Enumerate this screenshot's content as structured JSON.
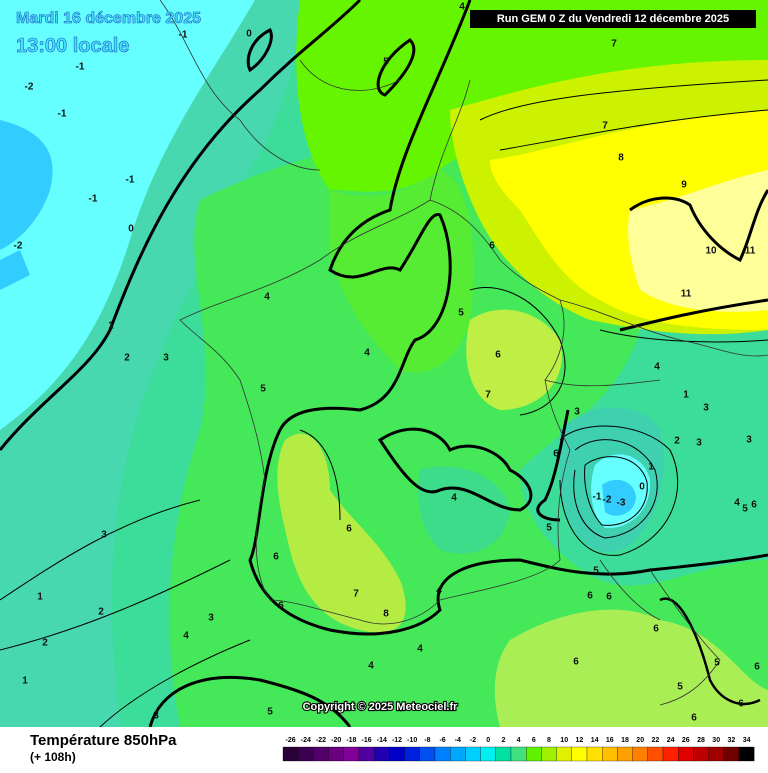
{
  "header": {
    "date": "Mardi 16 décembre 2025",
    "time": "13:00 locale",
    "run": "Run GEM 0 Z du Vendredi 12 décembre 2025"
  },
  "copyright": "Copyright © 2025 Meteociel.fr",
  "legend": {
    "title": "Température 850hPa",
    "lead": "(+ 108h)",
    "ticks": [
      -26,
      -24,
      -22,
      -20,
      -18,
      -16,
      -14,
      -12,
      -10,
      -8,
      -6,
      -4,
      -2,
      0,
      2,
      4,
      6,
      8,
      10,
      12,
      14,
      16,
      18,
      20,
      22,
      24,
      26,
      28,
      30,
      32,
      34
    ],
    "colors": [
      "#2a0038",
      "#3c0050",
      "#52006a",
      "#6a0080",
      "#800098",
      "#5000a0",
      "#2000b0",
      "#0000c8",
      "#0020e0",
      "#0050f0",
      "#0080ff",
      "#00a8ff",
      "#00d0ff",
      "#00f0f0",
      "#00e0a0",
      "#40e080",
      "#60f000",
      "#a0f000",
      "#e0f000",
      "#ffff00",
      "#ffe000",
      "#ffc000",
      "#ffa000",
      "#ff8000",
      "#ff5000",
      "#ff2000",
      "#e00000",
      "#c00000",
      "#a00000",
      "#700000",
      "#000000"
    ]
  },
  "contour_labels": [
    0,
    4,
    5,
    7,
    7,
    8,
    9,
    10,
    11,
    11,
    -1,
    -1,
    -2,
    -1,
    -1,
    -1,
    0,
    -2,
    6,
    4,
    5,
    1,
    2,
    3,
    4,
    6,
    7,
    4,
    5,
    3,
    1,
    3,
    2,
    3,
    3,
    1,
    6,
    0,
    -1,
    -2,
    -3,
    4,
    4,
    5,
    6,
    5,
    6,
    3,
    6,
    5,
    6,
    7,
    8,
    4,
    6,
    6,
    1,
    2,
    3,
    6,
    4,
    2,
    4,
    6,
    4,
    5,
    6,
    1,
    5,
    6,
    3,
    5,
    6
  ]
}
